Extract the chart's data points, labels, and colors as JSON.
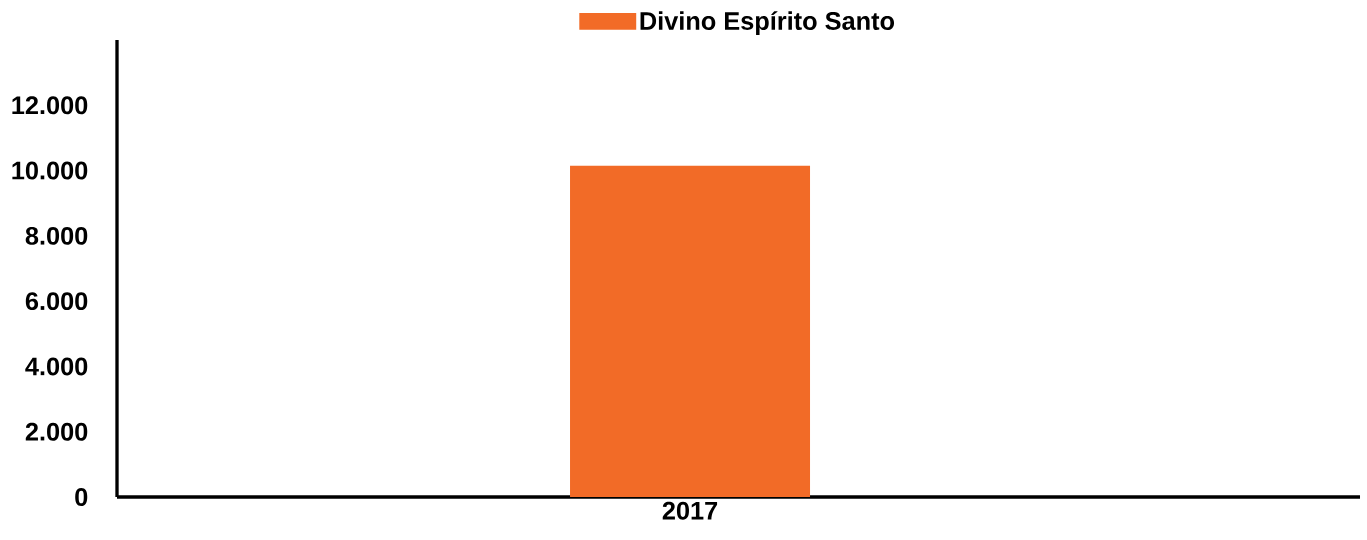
{
  "chart_data": {
    "type": "bar",
    "categories": [
      "2017"
    ],
    "series": [
      {
        "name": "Divino Espírito Santo",
        "color": "#f26b27",
        "values": [
          10150
        ]
      }
    ],
    "ylim": [
      0,
      14000
    ],
    "yticks": [
      {
        "value": 0,
        "label": "0"
      },
      {
        "value": 2000,
        "label": "2.000"
      },
      {
        "value": 4000,
        "label": "4.000"
      },
      {
        "value": 6000,
        "label": "6.000"
      },
      {
        "value": 8000,
        "label": "8.000"
      },
      {
        "value": 10000,
        "label": "10.000"
      },
      {
        "value": 12000,
        "label": "12.000"
      }
    ],
    "legend": "top"
  }
}
